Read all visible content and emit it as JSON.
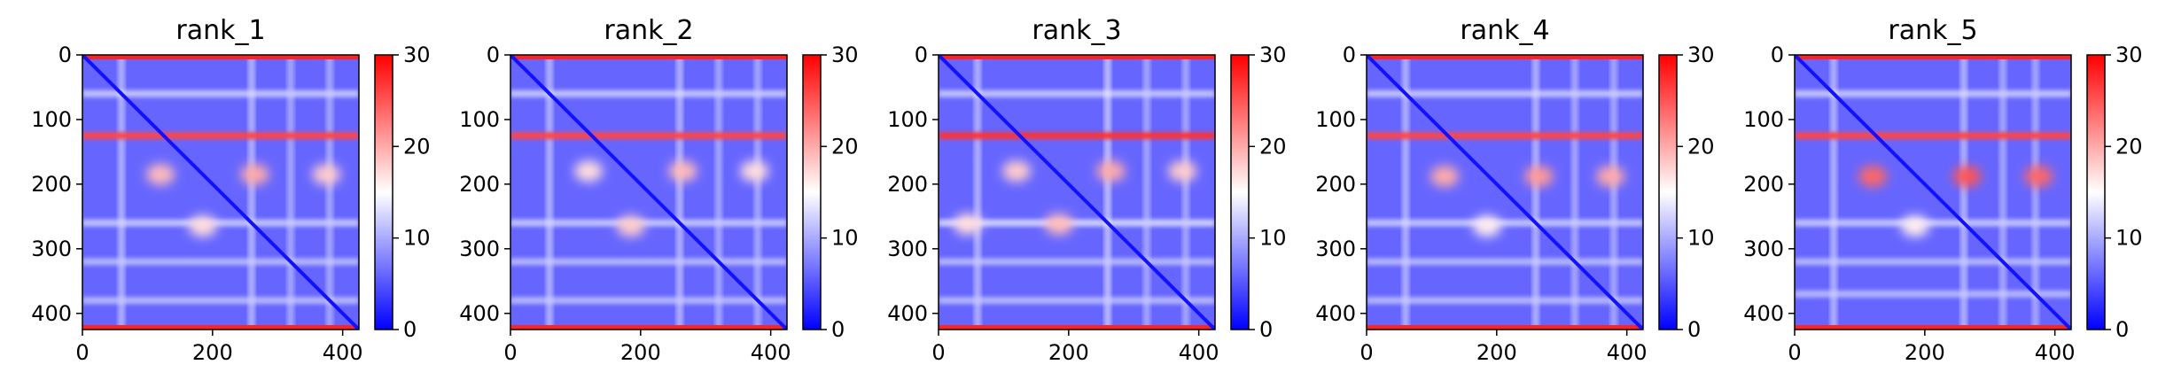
{
  "chart_data": [
    {
      "type": "heatmap",
      "title": "rank_1",
      "xlim": [
        0,
        425
      ],
      "ylim": [
        425,
        0
      ],
      "x_ticks": [
        0,
        200,
        400
      ],
      "y_ticks": [
        0,
        100,
        200,
        300,
        400
      ],
      "colorbar": {
        "range": [
          0,
          30
        ],
        "ticks": [
          0,
          10,
          20,
          30
        ],
        "colormap": [
          "#0000ff",
          "#ffffff",
          "#ff0000"
        ]
      },
      "hot_rows": [
        {
          "pos": 125,
          "width": 5,
          "value": 26
        }
      ],
      "edge_value": 28,
      "light_rows": [
        {
          "pos": 60,
          "value": 13
        },
        {
          "pos": 260,
          "value": 13
        },
        {
          "pos": 320,
          "value": 12
        },
        {
          "pos": 380,
          "value": 12
        }
      ],
      "hotspots": [
        {
          "x": 120,
          "y": 185,
          "value": 19
        },
        {
          "x": 265,
          "y": 185,
          "value": 20
        },
        {
          "x": 375,
          "y": 185,
          "value": 18
        },
        {
          "x": 185,
          "y": 265,
          "value": 17
        }
      ],
      "diagonal_value": 1,
      "background_value": 6
    },
    {
      "type": "heatmap",
      "title": "rank_2",
      "xlim": [
        0,
        425
      ],
      "ylim": [
        425,
        0
      ],
      "x_ticks": [
        0,
        200,
        400
      ],
      "y_ticks": [
        0,
        100,
        200,
        300,
        400
      ],
      "colorbar": {
        "range": [
          0,
          30
        ],
        "ticks": [
          0,
          10,
          20,
          30
        ],
        "colormap": [
          "#0000ff",
          "#ffffff",
          "#ff0000"
        ]
      },
      "hot_rows": [
        {
          "pos": 125,
          "width": 5,
          "value": 26
        }
      ],
      "edge_value": 28,
      "light_rows": [
        {
          "pos": 60,
          "value": 13
        },
        {
          "pos": 260,
          "value": 13
        },
        {
          "pos": 320,
          "value": 12
        },
        {
          "pos": 380,
          "value": 12
        }
      ],
      "hotspots": [
        {
          "x": 120,
          "y": 180,
          "value": 17
        },
        {
          "x": 265,
          "y": 180,
          "value": 19
        },
        {
          "x": 375,
          "y": 180,
          "value": 17
        },
        {
          "x": 185,
          "y": 265,
          "value": 18
        }
      ],
      "diagonal_value": 1,
      "background_value": 6
    },
    {
      "type": "heatmap",
      "title": "rank_3",
      "xlim": [
        0,
        425
      ],
      "ylim": [
        425,
        0
      ],
      "x_ticks": [
        0,
        200,
        400
      ],
      "y_ticks": [
        0,
        100,
        200,
        300,
        400
      ],
      "colorbar": {
        "range": [
          0,
          30
        ],
        "ticks": [
          0,
          10,
          20,
          30
        ],
        "colormap": [
          "#0000ff",
          "#ffffff",
          "#ff0000"
        ]
      },
      "hot_rows": [
        {
          "pos": 125,
          "width": 5,
          "value": 27
        }
      ],
      "edge_value": 28,
      "light_rows": [
        {
          "pos": 60,
          "value": 13
        },
        {
          "pos": 260,
          "value": 14
        },
        {
          "pos": 320,
          "value": 12
        },
        {
          "pos": 380,
          "value": 12
        }
      ],
      "hotspots": [
        {
          "x": 120,
          "y": 180,
          "value": 18
        },
        {
          "x": 265,
          "y": 180,
          "value": 20
        },
        {
          "x": 375,
          "y": 180,
          "value": 18
        },
        {
          "x": 185,
          "y": 262,
          "value": 19
        },
        {
          "x": 45,
          "y": 262,
          "value": 17
        }
      ],
      "diagonal_value": 1,
      "background_value": 6
    },
    {
      "type": "heatmap",
      "title": "rank_4",
      "xlim": [
        0,
        425
      ],
      "ylim": [
        425,
        0
      ],
      "x_ticks": [
        0,
        200,
        400
      ],
      "y_ticks": [
        0,
        100,
        200,
        300,
        400
      ],
      "colorbar": {
        "range": [
          0,
          30
        ],
        "ticks": [
          0,
          10,
          20,
          30
        ],
        "colormap": [
          "#0000ff",
          "#ffffff",
          "#ff0000"
        ]
      },
      "hot_rows": [
        {
          "pos": 125,
          "width": 5,
          "value": 26
        }
      ],
      "edge_value": 28,
      "light_rows": [
        {
          "pos": 60,
          "value": 13
        },
        {
          "pos": 260,
          "value": 13
        },
        {
          "pos": 320,
          "value": 12
        },
        {
          "pos": 380,
          "value": 12
        }
      ],
      "hotspots": [
        {
          "x": 120,
          "y": 188,
          "value": 20
        },
        {
          "x": 265,
          "y": 188,
          "value": 21
        },
        {
          "x": 375,
          "y": 188,
          "value": 20
        },
        {
          "x": 185,
          "y": 265,
          "value": 16
        }
      ],
      "diagonal_value": 1,
      "background_value": 6
    },
    {
      "type": "heatmap",
      "title": "rank_5",
      "xlim": [
        0,
        425
      ],
      "ylim": [
        425,
        0
      ],
      "x_ticks": [
        0,
        200,
        400
      ],
      "y_ticks": [
        0,
        100,
        200,
        300,
        400
      ],
      "colorbar": {
        "range": [
          0,
          30
        ],
        "ticks": [
          0,
          10,
          20,
          30
        ],
        "colormap": [
          "#0000ff",
          "#ffffff",
          "#ff0000"
        ]
      },
      "hot_rows": [
        {
          "pos": 125,
          "width": 5,
          "value": 26
        }
      ],
      "edge_value": 28,
      "light_rows": [
        {
          "pos": 60,
          "value": 13
        },
        {
          "pos": 260,
          "value": 13
        },
        {
          "pos": 320,
          "value": 12
        },
        {
          "pos": 370,
          "value": 12
        }
      ],
      "hotspots": [
        {
          "x": 120,
          "y": 188,
          "value": 24
        },
        {
          "x": 265,
          "y": 188,
          "value": 25
        },
        {
          "x": 375,
          "y": 188,
          "value": 24
        },
        {
          "x": 185,
          "y": 265,
          "value": 16
        }
      ],
      "diagonal_value": 1,
      "background_value": 6
    }
  ]
}
